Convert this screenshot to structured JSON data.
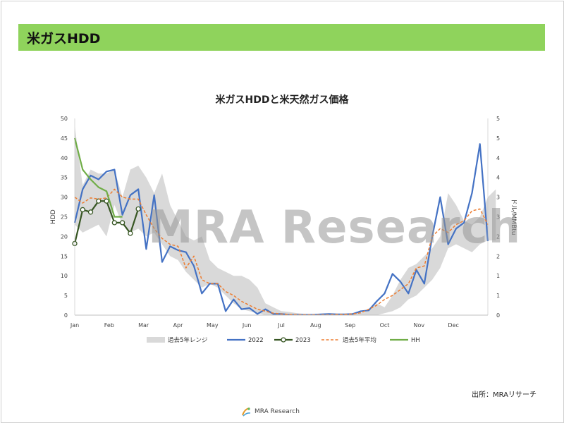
{
  "header": {
    "title": "米ガスHDD"
  },
  "watermark": "MRA Research",
  "source": "出所：MRAリサーチ",
  "footer": {
    "logo_text": "MRA Research"
  },
  "colors": {
    "header_bg": "#8fd35c",
    "range": "#d9d9d9",
    "y2022": "#4472c4",
    "y2023": "#375623",
    "avg5": "#ed7d31",
    "hh": "#70ad47"
  },
  "chart_data": {
    "type": "line",
    "title": "米ガスHDDと米天然ガス価格",
    "ylabel": "HDD",
    "y2label": "ドル/MMBtu",
    "ylim": [
      0,
      50
    ],
    "y2lim": [
      0,
      5
    ],
    "yticks": [
      "0",
      "5",
      "10",
      "15",
      "20",
      "25",
      "30",
      "35",
      "40",
      "45",
      "50"
    ],
    "y2ticks": [
      "0",
      "1",
      "1",
      "2",
      "2",
      "3",
      "3",
      "4",
      "4",
      "5",
      "5"
    ],
    "month_labels": [
      "Jan",
      "Feb",
      "Mar",
      "Apr",
      "May",
      "Jun",
      "Jul",
      "Aug",
      "Sep",
      "Oct",
      "Nov",
      "Dec"
    ],
    "legend": [
      "過去5年レンジ",
      "2022",
      "2023",
      "過去5年平均",
      "HH"
    ],
    "x_week_max": 52,
    "series": [
      {
        "name": "過去5年レンジ",
        "kind": "range",
        "upper": [
          48,
          33,
          37,
          36,
          36,
          37,
          30,
          37,
          38,
          35,
          31,
          36,
          28,
          24,
          20,
          19,
          20,
          14,
          12,
          11,
          10,
          10,
          9,
          7,
          3,
          2,
          1,
          0.8,
          0.5,
          0.3,
          0.2,
          0.2,
          0.2,
          0.3,
          0.3,
          0.5,
          0.6,
          1,
          3,
          2,
          5,
          9,
          12,
          13,
          15,
          17,
          20,
          31,
          28,
          24,
          23,
          25,
          30,
          32
        ],
        "lower": [
          23,
          21,
          22,
          23,
          20,
          28,
          23,
          21,
          22,
          20,
          21,
          18,
          15,
          14,
          11,
          9,
          7,
          8,
          7,
          5,
          3,
          1.5,
          1.0,
          0.5,
          0,
          0,
          0,
          0,
          0,
          0,
          0,
          0,
          0,
          0,
          0,
          0,
          0,
          0,
          0,
          0.5,
          1,
          2,
          4,
          5,
          7,
          9,
          12,
          17,
          18,
          17,
          16,
          18,
          19,
          19
        ]
      },
      {
        "name": "2022",
        "values": [
          23.5,
          32,
          35.5,
          34.5,
          36.5,
          37,
          25.5,
          30.5,
          32,
          16.8,
          30.5,
          13.5,
          17.5,
          16.5,
          16,
          12.5,
          5.5,
          8,
          8,
          1.0,
          4,
          1.5,
          1.8,
          0.3,
          1.5,
          0.3,
          0.3,
          0.1,
          0.1,
          0.1,
          0.1,
          0.2,
          0.3,
          0.2,
          0.2,
          0.3,
          1.0,
          1.2,
          3.5,
          5.5,
          10.5,
          8.5,
          5.5,
          11.5,
          8,
          20,
          30,
          18,
          22,
          23.5,
          31,
          43.5,
          18.8
        ]
      },
      {
        "name": "2023",
        "values": [
          18.2,
          26.8,
          26.2,
          29,
          29,
          23.5,
          23.5,
          20.8,
          27
        ]
      },
      {
        "name": "過去5年平均",
        "values": [
          30,
          28.5,
          29.8,
          29.5,
          29.8,
          32,
          30,
          29.5,
          29.5,
          25.5,
          22,
          19.5,
          18,
          17.5,
          12,
          15,
          9,
          8,
          8,
          6,
          5,
          3.5,
          2.5,
          1.5,
          1,
          0.5,
          0.3,
          0.2,
          0.1,
          0.1,
          0.1,
          0.1,
          0.1,
          0.2,
          0.2,
          0.3,
          0.6,
          1.5,
          2.5,
          4,
          5,
          6.5,
          8,
          12,
          12.5,
          20,
          22,
          21,
          23,
          24,
          26.5,
          27,
          23
        ]
      },
      {
        "name": "HH",
        "axis": "right",
        "values": [
          4.5,
          3.7,
          3.45,
          3.25,
          3.15,
          2.5,
          2.5
        ]
      }
    ]
  }
}
